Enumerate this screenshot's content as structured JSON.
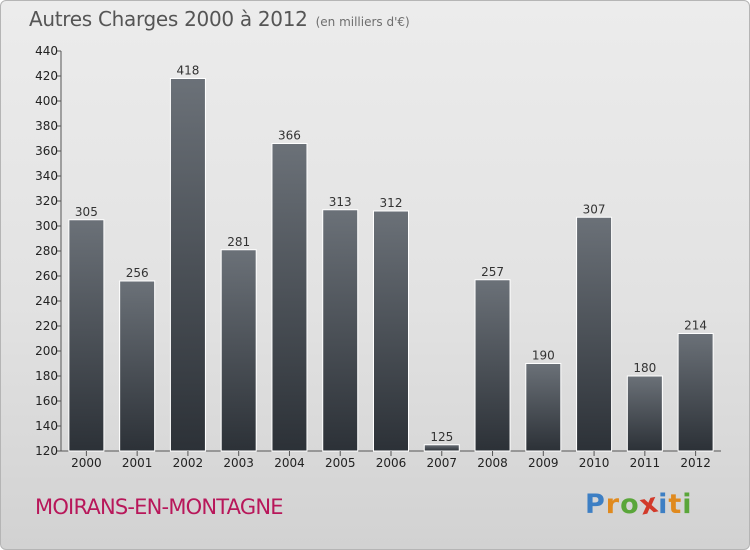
{
  "header": {
    "title": "Autres Charges 2000 à 2012",
    "subtitle": "(en milliers d'€)"
  },
  "footer": {
    "commune": "MOIRANS-EN-MONTAGNE",
    "brand": [
      "P",
      "r",
      "o",
      "x",
      "i",
      "t",
      "i"
    ]
  },
  "colors": {
    "bar_top": "#6b7178",
    "bar_bottom": "#2c3137",
    "commune": "#b8175a",
    "brand_letters": [
      "#3d7fc4",
      "#e08a1e",
      "#5aa63a",
      "#d23a2a",
      "#3d7fc4",
      "#e08a1e",
      "#5aa63a"
    ]
  },
  "chart_data": {
    "type": "bar",
    "title": "Autres Charges 2000 à 2012",
    "subtitle": "(en milliers d'€)",
    "categories": [
      "2000",
      "2001",
      "2002",
      "2003",
      "2004",
      "2005",
      "2006",
      "2007",
      "2008",
      "2009",
      "2010",
      "2011",
      "2012"
    ],
    "values": [
      305,
      256,
      418,
      281,
      366,
      313,
      312,
      125,
      257,
      190,
      307,
      180,
      214
    ],
    "ylim": [
      120,
      440
    ],
    "yticks": [
      120,
      140,
      160,
      180,
      200,
      220,
      240,
      260,
      280,
      300,
      320,
      340,
      360,
      380,
      400,
      420,
      440
    ],
    "grid": false,
    "data_labels": true
  }
}
